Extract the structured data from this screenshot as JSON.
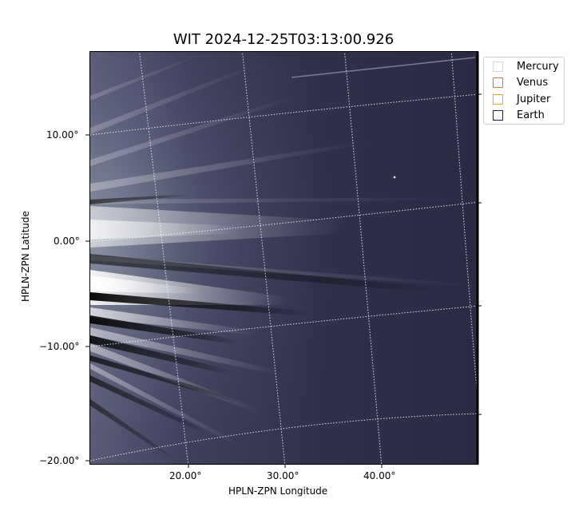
{
  "figure": {
    "title": "WIT 2024-12-25T03:13:00.926",
    "xlabel": "HPLN-ZPN Longitude",
    "ylabel": "HPLN-ZPN Latitude"
  },
  "legend": {
    "items": [
      {
        "label": "Mercury",
        "color": "#d8d8d8"
      },
      {
        "label": "Venus",
        "color": "#e07a3a"
      },
      {
        "label": "Jupiter",
        "color": "#e0b020"
      },
      {
        "label": "Earth",
        "color": "#1a1a6e"
      }
    ]
  },
  "axes": {
    "x_ticks": [
      "20.00°",
      "30.00°",
      "40.00°"
    ],
    "y_ticks": [
      "10.00°",
      "0.00°",
      "−10.00°",
      "−20.00°"
    ]
  },
  "colors": {
    "background_dark": "#2c2c42",
    "streamer_light": "#dfe9e9",
    "grid": "#ffffff"
  }
}
